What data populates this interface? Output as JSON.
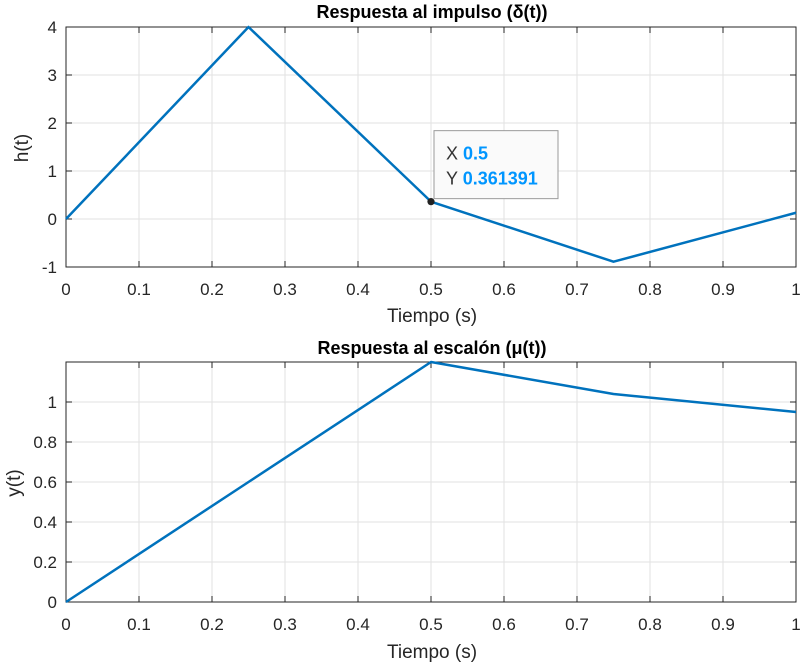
{
  "chart_data": [
    {
      "type": "line",
      "title": "Respuesta al impulso (δ(t))",
      "xlabel": "Tiempo (s)",
      "ylabel": "h(t)",
      "xlim": [
        0,
        1
      ],
      "ylim": [
        -1,
        4
      ],
      "xticks": [
        0,
        0.1,
        0.2,
        0.3,
        0.4,
        0.5,
        0.6,
        0.7,
        0.8,
        0.9,
        1
      ],
      "xtick_labels": [
        "0",
        "0.1",
        "0.2",
        "0.3",
        "0.4",
        "0.5",
        "0.6",
        "0.7",
        "0.8",
        "0.9",
        "1"
      ],
      "yticks": [
        -1,
        0,
        1,
        2,
        3,
        4
      ],
      "ytick_labels": [
        "-1",
        "0",
        "1",
        "2",
        "3",
        "4"
      ],
      "grid": true,
      "series": [
        {
          "color": "#0072bd",
          "x": [
            0,
            0.25,
            0.5,
            0.75,
            1
          ],
          "y": [
            0,
            4,
            0.361391,
            -0.89,
            0.13
          ]
        }
      ],
      "datatip": {
        "x_key": "X",
        "x_value": "0.5",
        "y_key": "Y",
        "y_value": "0.361391",
        "x": 0.5,
        "y": 0.361391,
        "value_color": "#0096ff"
      }
    },
    {
      "type": "line",
      "title": "Respuesta al escalón (μ(t))",
      "xlabel": "Tiempo (s)",
      "ylabel": "y(t)",
      "xlim": [
        0,
        1
      ],
      "ylim": [
        0,
        1.2
      ],
      "xticks": [
        0,
        0.1,
        0.2,
        0.3,
        0.4,
        0.5,
        0.6,
        0.7,
        0.8,
        0.9,
        1
      ],
      "xtick_labels": [
        "0",
        "0.1",
        "0.2",
        "0.3",
        "0.4",
        "0.5",
        "0.6",
        "0.7",
        "0.8",
        "0.9",
        "1"
      ],
      "yticks": [
        0,
        0.2,
        0.4,
        0.6,
        0.8,
        1
      ],
      "ytick_labels": [
        "0",
        "0.2",
        "0.4",
        "0.6",
        "0.8",
        "1"
      ],
      "grid": true,
      "series": [
        {
          "color": "#0072bd",
          "x": [
            0,
            0.25,
            0.5,
            0.75,
            1
          ],
          "y": [
            0,
            0.6,
            1.2,
            1.04,
            0.95
          ]
        }
      ]
    }
  ]
}
